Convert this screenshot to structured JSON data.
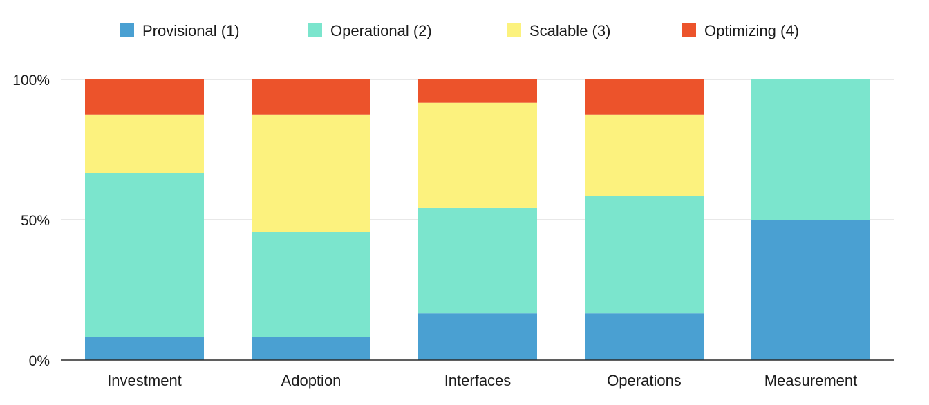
{
  "chart_data": {
    "type": "bar",
    "stacked": true,
    "normalized": true,
    "categories": [
      "Investment",
      "Adoption",
      "Interfaces",
      "Operations",
      "Measurement"
    ],
    "series": [
      {
        "name": "Provisional (1)",
        "color": "#4aa0d2",
        "values": [
          8.3,
          8.3,
          16.7,
          16.7,
          50.0
        ]
      },
      {
        "name": "Operational (2)",
        "color": "#7be5cd",
        "values": [
          58.3,
          37.5,
          37.5,
          41.7,
          50.0
        ]
      },
      {
        "name": "Scalable (3)",
        "color": "#fcf27e",
        "values": [
          20.9,
          41.7,
          37.5,
          29.1,
          0
        ]
      },
      {
        "name": "Optimizing (4)",
        "color": "#ec532b",
        "values": [
          12.5,
          12.5,
          8.3,
          12.5,
          0
        ]
      }
    ],
    "ylim": [
      0,
      100
    ],
    "yticks": [
      "0%",
      "50%",
      "100%"
    ],
    "ytick_values": [
      0,
      50,
      100
    ],
    "grid": true,
    "legend_position": "top"
  }
}
